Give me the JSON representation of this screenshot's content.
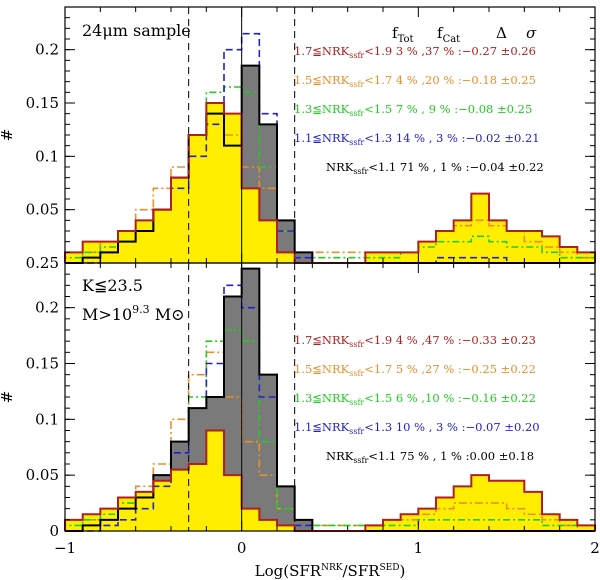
{
  "chart_data": {
    "type": "histogram",
    "xlabel": "Log(SFR",
    "xlabel_sup1": "NRK",
    "xlabel_mid": "/SFR",
    "xlabel_sup2": "SED",
    "xlabel_end": ")",
    "ylabel": "#",
    "xlim": [
      -1,
      2
    ],
    "ylim": [
      0,
      0.24
    ],
    "x_ticks": [
      -1,
      0,
      1,
      2
    ],
    "y_ticks_top": [
      0.05,
      0.1,
      0.15,
      0.2
    ],
    "y_ticks_bottom": [
      0,
      0.05,
      0.1,
      0.15,
      0.2
    ],
    "top_zero_label": "0.25",
    "dashed_lines_x": [
      -0.3,
      0.3
    ],
    "solid_line_x": 0,
    "bin_width": 0.1,
    "column_headers": [
      "f",
      "Tot",
      "f",
      "Cat",
      "Δ",
      "σ"
    ],
    "panels": [
      {
        "name": "24um",
        "annotation": "24μm sample",
        "legend": [
          {
            "prefix": "1.7≦NRK",
            "sub": "ssfr",
            "rest": "<1.9  3 % ,37 % :−0.27 ±0.26",
            "color": "#b01e1e"
          },
          {
            "prefix": "1.5≦NRK",
            "sub": "ssfr",
            "rest": "<1.7  4 % ,20 % :−0.18 ±0.25",
            "color": "#e8902a"
          },
          {
            "prefix": "1.3≦NRK",
            "sub": "ssfr",
            "rest": "<1.5  7 % , 9 % :−0.08 ±0.25",
            "color": "#22cc22"
          },
          {
            "prefix": "1.1≦NRK",
            "sub": "ssfr",
            "rest": "<1.3 14 % , 3 % :−0.02 ±0.21",
            "color": "#2222cc"
          },
          {
            "prefix": "NRK",
            "sub": "ssfr",
            "rest": "<1.1 71 % , 1 % :−0.04 ±0.22",
            "color": "#000000"
          }
        ],
        "x": [
          -1.0,
          -0.9,
          -0.8,
          -0.7,
          -0.6,
          -0.5,
          -0.4,
          -0.3,
          -0.2,
          -0.1,
          0.0,
          0.1,
          0.2,
          0.3,
          0.4,
          0.5,
          0.6,
          0.7,
          0.8,
          0.9,
          1.0,
          1.1,
          1.2,
          1.3,
          1.4,
          1.5,
          1.6,
          1.7,
          1.8,
          1.9
        ],
        "series": [
          {
            "name": "red 1.7-1.9 (yellow filled)",
            "color": "#b01e1e",
            "values": [
              0.01,
              0.02,
              0.02,
              0.03,
              0.04,
              0.05,
              0.08,
              0.12,
              0.15,
              0.14,
              0.07,
              0.04,
              0.01,
              0.0,
              0.0,
              0.0,
              0.0,
              0.01,
              0.01,
              0.01,
              0.02,
              0.03,
              0.04,
              0.065,
              0.04,
              0.03,
              0.03,
              0.025,
              0.015,
              0.01
            ]
          },
          {
            "name": "orange 1.5-1.7",
            "color": "#e8902a",
            "values": [
              0.01,
              0.01,
              0.02,
              0.03,
              0.05,
              0.07,
              0.09,
              0.12,
              0.15,
              0.12,
              0.09,
              0.07,
              0.03,
              0.01,
              0.01,
              0.01,
              0.01,
              0.01,
              0.01,
              0.01,
              0.02,
              0.03,
              0.035,
              0.04,
              0.035,
              0.03,
              0.02,
              0.015,
              0.01,
              0.005
            ]
          },
          {
            "name": "green 1.3-1.5",
            "color": "#22cc22",
            "values": [
              0.005,
              0.01,
              0.015,
              0.02,
              0.03,
              0.05,
              0.08,
              0.12,
              0.16,
              0.165,
              0.16,
              0.09,
              0.03,
              0.01,
              0.005,
              0.005,
              0.005,
              0.005,
              0.005,
              0.01,
              0.015,
              0.02,
              0.02,
              0.025,
              0.02,
              0.015,
              0.015,
              0.01,
              0.005,
              0.005
            ]
          },
          {
            "name": "blue 1.1-1.3",
            "color": "#2222cc",
            "values": [
              0.0,
              0.0,
              0.01,
              0.02,
              0.03,
              0.05,
              0.07,
              0.1,
              0.13,
              0.2,
              0.215,
              0.14,
              0.03,
              0.005,
              0.0,
              0.0,
              0.0,
              0.0,
              0.0,
              0.0,
              0.0,
              0.005,
              0.005,
              0.005,
              0.005,
              0.0,
              0.0,
              0.0,
              0.0,
              0.0
            ]
          },
          {
            "name": "black <1.1 (gray filled)",
            "color": "#000000",
            "values": [
              0.0,
              0.005,
              0.01,
              0.02,
              0.03,
              0.05,
              0.08,
              0.12,
              0.14,
              0.11,
              0.185,
              0.13,
              0.04,
              0.01,
              0.0,
              0.0,
              0.0,
              0.0,
              0.0,
              0.0,
              0.0,
              0.0,
              0.0,
              0.0,
              0.0,
              0.0,
              0.0,
              0.0,
              0.0,
              0.0
            ]
          }
        ]
      },
      {
        "name": "Kselected",
        "annotation": "K≦23.5",
        "annotation2_prefix": "M>10",
        "annotation2_sup": "9.3",
        "annotation2_suffix": " M⊙",
        "legend": [
          {
            "prefix": "1.7≦NRK",
            "sub": "ssfr",
            "rest": "<1.9  4 % ,47 % :−0.33 ±0.23",
            "color": "#b01e1e"
          },
          {
            "prefix": "1.5≦NRK",
            "sub": "ssfr",
            "rest": "<1.7  5 % ,27 % :−0.25 ±0.22",
            "color": "#e8902a"
          },
          {
            "prefix": "1.3≦NRK",
            "sub": "ssfr",
            "rest": "<1.5  6 % ,10 % :−0.16 ±0.22",
            "color": "#22cc22"
          },
          {
            "prefix": "1.1≦NRK",
            "sub": "ssfr",
            "rest": "<1.3 10 % , 3 % :−0.07 ±0.20",
            "color": "#2222cc"
          },
          {
            "prefix": "NRK",
            "sub": "ssfr",
            "rest": "<1.1 75 % , 1 % :0.00 ±0.18",
            "color": "#000000"
          }
        ],
        "x": [
          -1.0,
          -0.9,
          -0.8,
          -0.7,
          -0.6,
          -0.5,
          -0.4,
          -0.3,
          -0.2,
          -0.1,
          0.0,
          0.1,
          0.2,
          0.3,
          0.4,
          0.5,
          0.6,
          0.7,
          0.8,
          0.9,
          1.0,
          1.1,
          1.2,
          1.3,
          1.4,
          1.5,
          1.6,
          1.7,
          1.8,
          1.9
        ],
        "series": [
          {
            "name": "red 1.7-1.9 (yellow filled)",
            "color": "#b01e1e",
            "values": [
              0.01,
              0.015,
              0.02,
              0.03,
              0.035,
              0.045,
              0.055,
              0.06,
              0.09,
              0.05,
              0.02,
              0.01,
              0.005,
              0.0,
              0.0,
              0.0,
              0.0,
              0.005,
              0.01,
              0.015,
              0.02,
              0.03,
              0.04,
              0.05,
              0.045,
              0.045,
              0.035,
              0.015,
              0.01,
              0.005
            ]
          },
          {
            "name": "orange 1.5-1.7",
            "color": "#e8902a",
            "values": [
              0.01,
              0.01,
              0.02,
              0.03,
              0.04,
              0.06,
              0.1,
              0.14,
              0.16,
              0.12,
              0.08,
              0.05,
              0.02,
              0.01,
              0.005,
              0.005,
              0.005,
              0.005,
              0.01,
              0.01,
              0.015,
              0.02,
              0.025,
              0.025,
              0.025,
              0.02,
              0.015,
              0.01,
              0.005,
              0.005
            ]
          },
          {
            "name": "green 1.3-1.5",
            "color": "#22cc22",
            "values": [
              0.005,
              0.01,
              0.015,
              0.025,
              0.03,
              0.05,
              0.08,
              0.12,
              0.17,
              0.18,
              0.17,
              0.08,
              0.02,
              0.01,
              0.005,
              0.005,
              0.005,
              0.005,
              0.005,
              0.005,
              0.01,
              0.01,
              0.01,
              0.01,
              0.01,
              0.01,
              0.01,
              0.005,
              0.005,
              0.0
            ]
          },
          {
            "name": "blue 1.1-1.3",
            "color": "#2222cc",
            "values": [
              0.0,
              0.0,
              0.005,
              0.01,
              0.02,
              0.04,
              0.07,
              0.11,
              0.15,
              0.22,
              0.2,
              0.12,
              0.04,
              0.005,
              0.0,
              0.0,
              0.0,
              0.0,
              0.0,
              0.0,
              0.0,
              0.0,
              0.0,
              0.0,
              0.0,
              0.0,
              0.0,
              0.0,
              0.0,
              0.0
            ]
          },
          {
            "name": "black <1.1 (gray filled)",
            "color": "#000000",
            "values": [
              0.0,
              0.005,
              0.01,
              0.02,
              0.03,
              0.05,
              0.08,
              0.11,
              0.12,
              0.21,
              0.235,
              0.14,
              0.04,
              0.01,
              0.0,
              0.0,
              0.0,
              0.0,
              0.0,
              0.0,
              0.0,
              0.0,
              0.0,
              0.0,
              0.0,
              0.0,
              0.0,
              0.0,
              0.0,
              0.0
            ]
          }
        ]
      }
    ]
  }
}
